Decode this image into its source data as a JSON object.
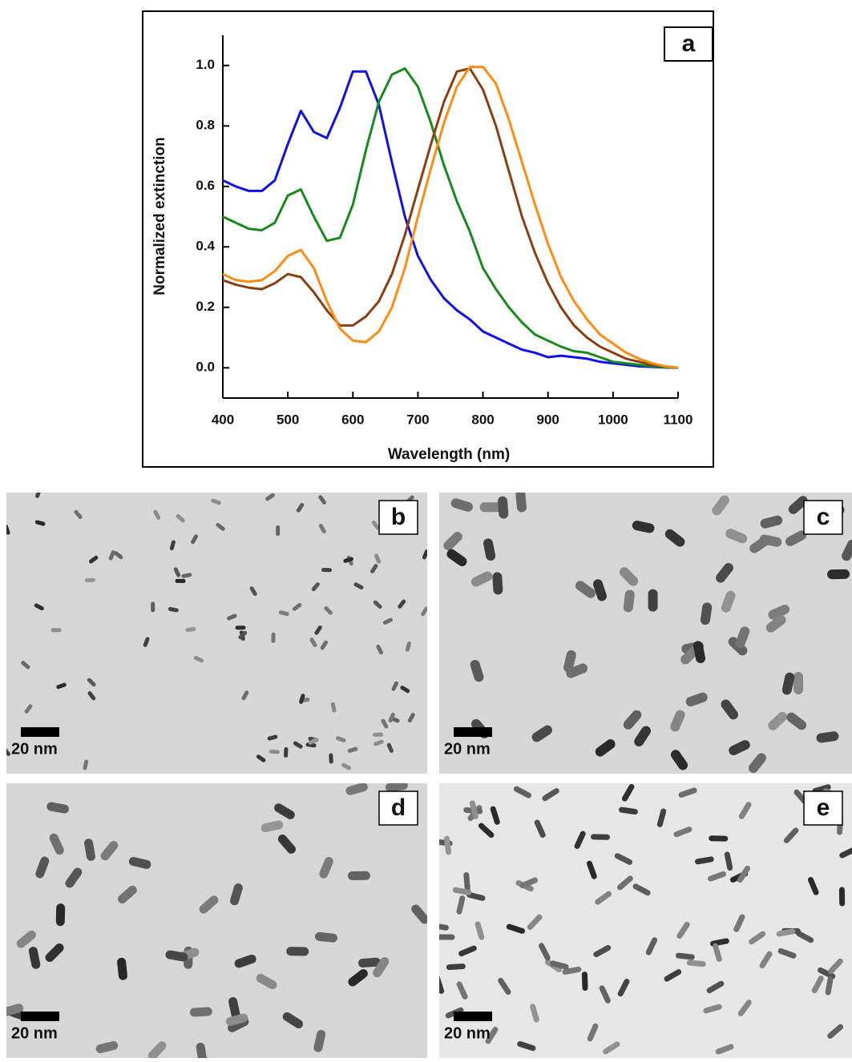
{
  "chart_data": {
    "type": "line",
    "panel_label": "a",
    "x_label": "Wavelength (nm)",
    "y_label": "Normalized extinction",
    "x": [
      400,
      420,
      440,
      460,
      480,
      500,
      520,
      540,
      560,
      580,
      600,
      620,
      640,
      660,
      680,
      700,
      720,
      740,
      760,
      780,
      800,
      820,
      840,
      860,
      880,
      900,
      920,
      940,
      960,
      980,
      1000,
      1020,
      1040,
      1060,
      1080,
      1100
    ],
    "series": [
      {
        "color": "#1010e8",
        "values": [
          0.62,
          0.6,
          0.585,
          0.585,
          0.62,
          0.74,
          0.85,
          0.78,
          0.76,
          0.86,
          0.98,
          0.98,
          0.87,
          0.68,
          0.5,
          0.37,
          0.29,
          0.23,
          0.19,
          0.16,
          0.12,
          0.1,
          0.08,
          0.06,
          0.05,
          0.035,
          0.04,
          0.035,
          0.03,
          0.02,
          0.015,
          0.01,
          0.005,
          0.003,
          0.001,
          0
        ]
      },
      {
        "color": "#168a1a",
        "values": [
          0.5,
          0.48,
          0.46,
          0.455,
          0.48,
          0.57,
          0.59,
          0.5,
          0.42,
          0.43,
          0.54,
          0.72,
          0.88,
          0.97,
          0.99,
          0.93,
          0.81,
          0.67,
          0.55,
          0.45,
          0.33,
          0.26,
          0.2,
          0.15,
          0.11,
          0.09,
          0.07,
          0.055,
          0.05,
          0.035,
          0.02,
          0.015,
          0.01,
          0.005,
          0.002,
          0
        ]
      },
      {
        "color": "#8b3e12",
        "values": [
          0.29,
          0.275,
          0.265,
          0.26,
          0.28,
          0.31,
          0.3,
          0.25,
          0.19,
          0.14,
          0.14,
          0.17,
          0.22,
          0.31,
          0.44,
          0.59,
          0.74,
          0.88,
          0.98,
          0.99,
          0.92,
          0.8,
          0.65,
          0.5,
          0.38,
          0.28,
          0.2,
          0.14,
          0.1,
          0.07,
          0.05,
          0.03,
          0.02,
          0.01,
          0.005,
          0
        ]
      },
      {
        "color": "#ff8c10",
        "values": [
          0.31,
          0.29,
          0.285,
          0.29,
          0.32,
          0.37,
          0.39,
          0.33,
          0.22,
          0.13,
          0.09,
          0.085,
          0.12,
          0.2,
          0.33,
          0.5,
          0.66,
          0.81,
          0.93,
          0.995,
          0.995,
          0.94,
          0.82,
          0.68,
          0.54,
          0.41,
          0.3,
          0.22,
          0.16,
          0.11,
          0.08,
          0.05,
          0.03,
          0.015,
          0.005,
          0
        ]
      }
    ],
    "xlim": [
      400,
      1100
    ],
    "xticks": [
      400,
      500,
      600,
      700,
      800,
      900,
      1000,
      1100
    ],
    "ylim": [
      -0.1,
      1.1
    ],
    "yticks": [
      {
        "value": 0,
        "label": "0.0"
      },
      0.2,
      0.4,
      0.6,
      0.8,
      {
        "value": 1,
        "label": "1.0"
      }
    ]
  },
  "panels": [
    {
      "label": "b",
      "scale_bar": "20 nm"
    },
    {
      "label": "c",
      "scale_bar": "20 nm"
    },
    {
      "label": "d",
      "scale_bar": "20 nm"
    },
    {
      "label": "e",
      "scale_bar": "20 nm"
    }
  ]
}
